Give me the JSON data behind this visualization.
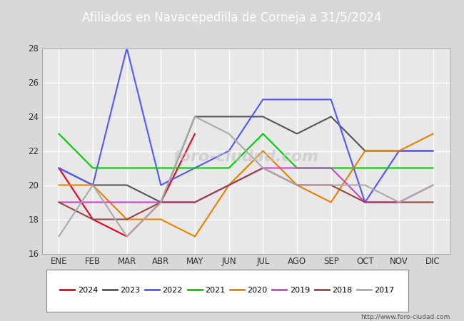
{
  "title": "Afiliados en Navacepedilla de Corneja a 31/5/2024",
  "title_bg_color": "#5b7fc4",
  "title_text_color": "white",
  "months": [
    "ENE",
    "FEB",
    "MAR",
    "ABR",
    "MAY",
    "JUN",
    "JUL",
    "AGO",
    "SEP",
    "OCT",
    "NOV",
    "DIC"
  ],
  "ylim": [
    16,
    28
  ],
  "yticks": [
    16,
    18,
    20,
    22,
    24,
    26,
    28
  ],
  "series": {
    "2024": {
      "color": "#e8001c",
      "values": [
        21,
        18,
        17,
        19,
        23,
        null,
        null,
        null,
        null,
        null,
        null,
        null
      ]
    },
    "2023": {
      "color": "#555555",
      "values": [
        21,
        20,
        20,
        19,
        24,
        24,
        24,
        23,
        24,
        22,
        22,
        22
      ]
    },
    "2022": {
      "color": "#5555ff",
      "values": [
        21,
        20,
        28,
        20,
        21,
        22,
        25,
        25,
        25,
        19,
        22,
        22
      ]
    },
    "2021": {
      "color": "#00cc00",
      "values": [
        23,
        21,
        21,
        21,
        21,
        21,
        23,
        21,
        21,
        21,
        21,
        21
      ]
    },
    "2020": {
      "color": "#e88000",
      "values": [
        20,
        20,
        18,
        18,
        17,
        20,
        22,
        20,
        19,
        22,
        22,
        23
      ]
    },
    "2019": {
      "color": "#cc44cc",
      "values": [
        19,
        19,
        19,
        19,
        19,
        20,
        21,
        21,
        21,
        19,
        19,
        20
      ]
    },
    "2018": {
      "color": "#994444",
      "values": [
        19,
        18,
        18,
        19,
        19,
        20,
        21,
        20,
        20,
        19,
        19,
        19
      ]
    },
    "2017": {
      "color": "#aaaaaa",
      "values": [
        17,
        20,
        17,
        19,
        24,
        23,
        21,
        20,
        20,
        20,
        19,
        20
      ]
    }
  },
  "fig_bg_color": "#d8d8d8",
  "plot_bg_color": "#e8e8e8",
  "grid_color": "white",
  "watermark": "http://www.foro-ciudad.com",
  "legend_order": [
    "2024",
    "2023",
    "2022",
    "2021",
    "2020",
    "2019",
    "2018",
    "2017"
  ]
}
